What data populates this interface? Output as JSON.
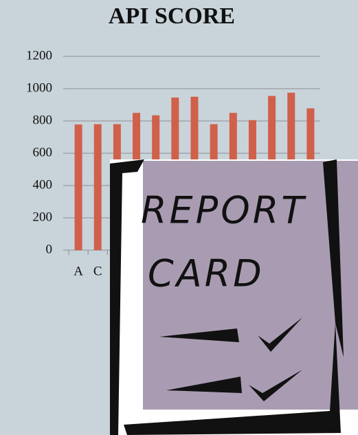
{
  "chart_data": {
    "type": "bar",
    "title": "API SCORE",
    "categories": [
      "A",
      "C",
      null,
      null,
      null,
      null,
      null,
      null,
      null,
      null,
      null,
      null,
      null
    ],
    "values": [
      778,
      780,
      780,
      850,
      835,
      945,
      950,
      780,
      850,
      805,
      955,
      975,
      878
    ],
    "color": "#d0604a",
    "ylim": [
      0,
      1200
    ],
    "yticks": [
      0,
      200,
      400,
      600,
      800,
      1000,
      1200
    ],
    "grid": true
  },
  "image_text": {
    "lines": [
      "REPORT",
      "CARD"
    ]
  }
}
